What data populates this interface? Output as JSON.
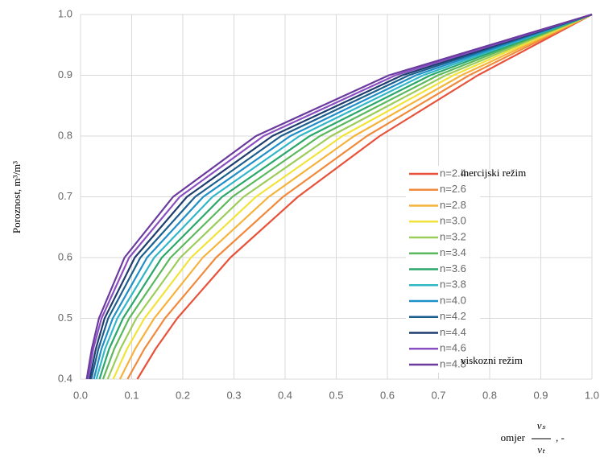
{
  "chart_data": {
    "type": "line",
    "y_label": "Poroznost, m³/m³",
    "x_label": {
      "text": "omjer",
      "numerator": "vₛ",
      "denominator": "vₜ",
      "suffix": ", -"
    },
    "annotations": [
      "inercijski režim",
      "viskozni režim"
    ],
    "xlim": [
      0,
      1
    ],
    "ylim": [
      0.4,
      1
    ],
    "xticks": [
      {
        "value": 0,
        "label": "0.0"
      },
      0.1,
      0.2,
      0.3,
      0.4,
      0.5,
      0.6,
      0.7,
      0.8,
      0.9,
      {
        "value": 1,
        "label": "1.0"
      }
    ],
    "yticks": [
      0.4,
      0.5,
      0.6,
      0.7,
      0.8,
      0.9,
      {
        "value": 1,
        "label": "1.0"
      }
    ],
    "grid": true,
    "series": [
      {
        "name": "n=2.4",
        "color": "#e8523a",
        "x": [
          0.111,
          0.147,
          0.189,
          0.293,
          0.425,
          0.585,
          0.777,
          1
        ],
        "values": [
          0.4,
          0.45,
          0.5,
          0.6,
          0.7,
          0.8,
          0.9,
          1
        ]
      },
      {
        "name": "n=2.6",
        "color": "#f08a3c",
        "x": [
          0.092,
          0.125,
          0.165,
          0.265,
          0.396,
          0.56,
          0.76,
          1
        ],
        "values": [
          0.4,
          0.45,
          0.5,
          0.6,
          0.7,
          0.8,
          0.9,
          1
        ]
      },
      {
        "name": "n=2.8",
        "color": "#f5b33b",
        "x": [
          0.077,
          0.107,
          0.144,
          0.239,
          0.368,
          0.535,
          0.745,
          1
        ],
        "values": [
          0.4,
          0.45,
          0.5,
          0.6,
          0.7,
          0.8,
          0.9,
          1
        ]
      },
      {
        "name": "n=3.0",
        "color": "#f2e33a",
        "x": [
          0.064,
          0.091,
          0.125,
          0.216,
          0.343,
          0.512,
          0.729,
          1
        ],
        "values": [
          0.4,
          0.45,
          0.5,
          0.6,
          0.7,
          0.8,
          0.9,
          1
        ]
      },
      {
        "name": "n=3.2",
        "color": "#9ccc5a",
        "x": [
          0.053,
          0.078,
          0.109,
          0.195,
          0.319,
          0.49,
          0.714,
          1
        ],
        "values": [
          0.4,
          0.45,
          0.5,
          0.6,
          0.7,
          0.8,
          0.9,
          1
        ]
      },
      {
        "name": "n=3.4",
        "color": "#5cb85c",
        "x": [
          0.044,
          0.066,
          0.095,
          0.176,
          0.297,
          0.468,
          0.699,
          1
        ],
        "values": [
          0.4,
          0.45,
          0.5,
          0.6,
          0.7,
          0.8,
          0.9,
          1
        ]
      },
      {
        "name": "n=3.6",
        "color": "#2aa76a",
        "x": [
          0.037,
          0.056,
          0.083,
          0.159,
          0.277,
          0.448,
          0.684,
          1
        ],
        "values": [
          0.4,
          0.45,
          0.5,
          0.6,
          0.7,
          0.8,
          0.9,
          1
        ]
      },
      {
        "name": "n=3.8",
        "color": "#31b6c8",
        "x": [
          0.031,
          0.048,
          0.072,
          0.144,
          0.258,
          0.428,
          0.67,
          1
        ],
        "values": [
          0.4,
          0.45,
          0.5,
          0.6,
          0.7,
          0.8,
          0.9,
          1
        ]
      },
      {
        "name": "n=4.0",
        "color": "#1f8fc8",
        "x": [
          0.026,
          0.041,
          0.063,
          0.13,
          0.24,
          0.41,
          0.656,
          1
        ],
        "values": [
          0.4,
          0.45,
          0.5,
          0.6,
          0.7,
          0.8,
          0.9,
          1
        ]
      },
      {
        "name": "n=4.2",
        "color": "#1c5f8f",
        "x": [
          0.021,
          0.035,
          0.054,
          0.117,
          0.224,
          0.392,
          0.642,
          1
        ],
        "values": [
          0.4,
          0.45,
          0.5,
          0.6,
          0.7,
          0.8,
          0.9,
          1
        ]
      },
      {
        "name": "n=4.4",
        "color": "#1f3c6e",
        "x": [
          0.018,
          0.03,
          0.047,
          0.106,
          0.208,
          0.375,
          0.629,
          1
        ],
        "values": [
          0.4,
          0.45,
          0.5,
          0.6,
          0.7,
          0.8,
          0.9,
          1
        ]
      },
      {
        "name": "n=4.6",
        "color": "#8a4fc0",
        "x": [
          0.015,
          0.025,
          0.041,
          0.095,
          0.194,
          0.358,
          0.616,
          1
        ],
        "values": [
          0.4,
          0.45,
          0.5,
          0.6,
          0.7,
          0.8,
          0.9,
          1
        ]
      },
      {
        "name": "n=4.8",
        "color": "#6a3a9e",
        "x": [
          0.012,
          0.022,
          0.036,
          0.086,
          0.181,
          0.343,
          0.603,
          1
        ],
        "values": [
          0.4,
          0.45,
          0.5,
          0.6,
          0.7,
          0.8,
          0.9,
          1
        ]
      }
    ]
  }
}
